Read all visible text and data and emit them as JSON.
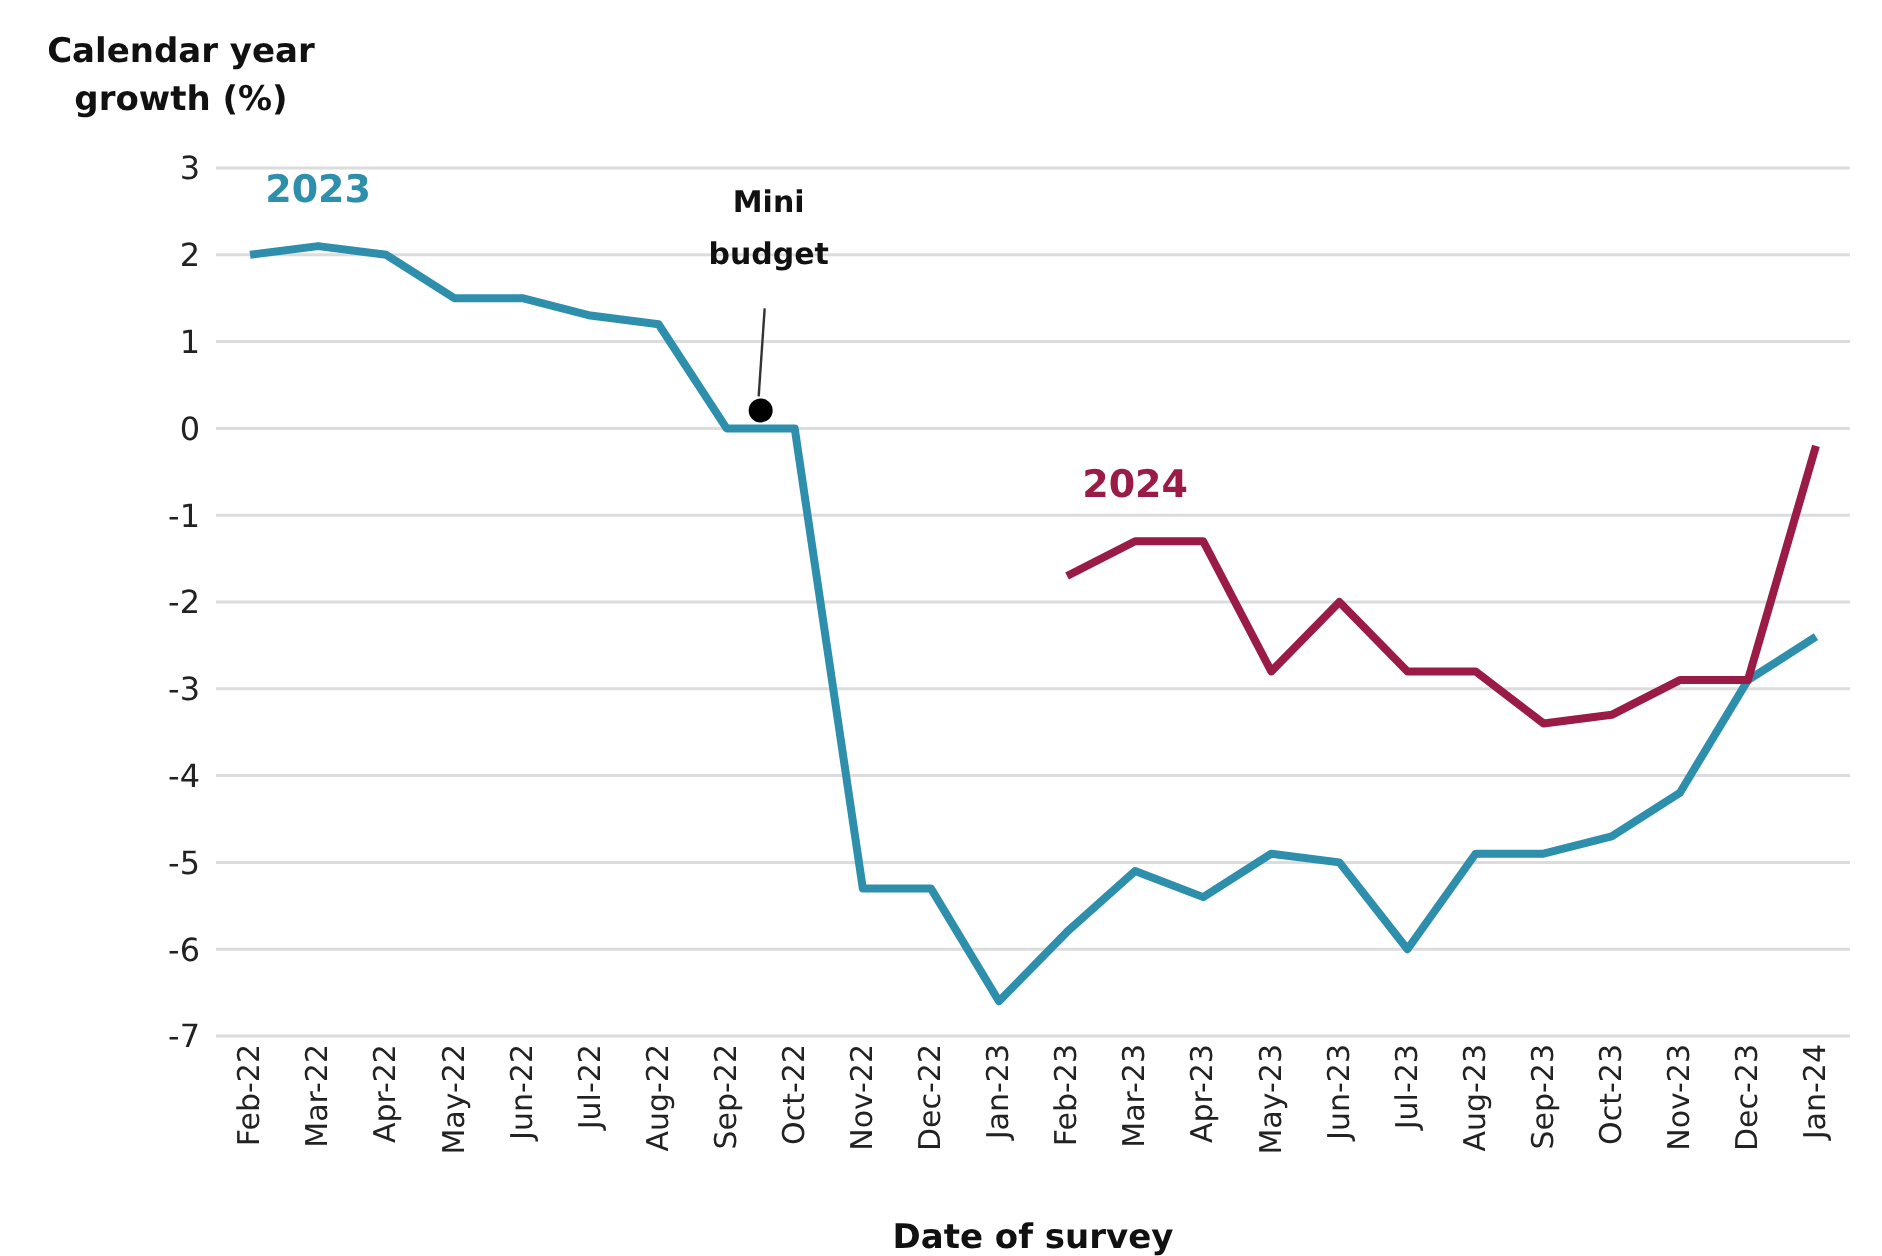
{
  "chart_data": {
    "type": "line",
    "ylabel": "Calendar year growth (%)",
    "xlabel": "Date of survey",
    "categories": [
      "Feb-22",
      "Mar-22",
      "Apr-22",
      "May-22",
      "Jun-22",
      "Jul-22",
      "Aug-22",
      "Sep-22",
      "Oct-22",
      "Nov-22",
      "Dec-22",
      "Jan-23",
      "Feb-23",
      "Mar-23",
      "Apr-23",
      "May-23",
      "Jun-23",
      "Jul-23",
      "Aug-23",
      "Sep-23",
      "Oct-23",
      "Nov-23",
      "Dec-23",
      "Jan-24"
    ],
    "series": [
      {
        "name": "2023",
        "color": "#2e8fac",
        "values": [
          2.0,
          2.1,
          2.0,
          1.5,
          1.5,
          1.3,
          1.2,
          0,
          0,
          -5.3,
          -5.3,
          -6.6,
          -5.8,
          -5.1,
          -5.4,
          -4.9,
          -5.0,
          -6.0,
          -4.9,
          -4.9,
          -4.7,
          -4.2,
          -2.9,
          -2.4
        ]
      },
      {
        "name": "2024",
        "color": "#9b1b47",
        "values": [
          null,
          null,
          null,
          null,
          null,
          null,
          null,
          null,
          null,
          null,
          null,
          null,
          -1.7,
          -1.3,
          -1.3,
          -2.8,
          -2.0,
          -2.8,
          -2.8,
          -3.4,
          -3.3,
          -2.9,
          -2.9,
          -0.2
        ]
      }
    ],
    "ylim": [
      -7,
      3
    ],
    "yticks": [
      -7,
      -6,
      -5,
      -4,
      -3,
      -2,
      -1,
      0,
      1,
      2,
      3
    ],
    "grid": "y",
    "marker": "none",
    "line_style": "solid",
    "annotations": [
      "Mini budget"
    ]
  }
}
